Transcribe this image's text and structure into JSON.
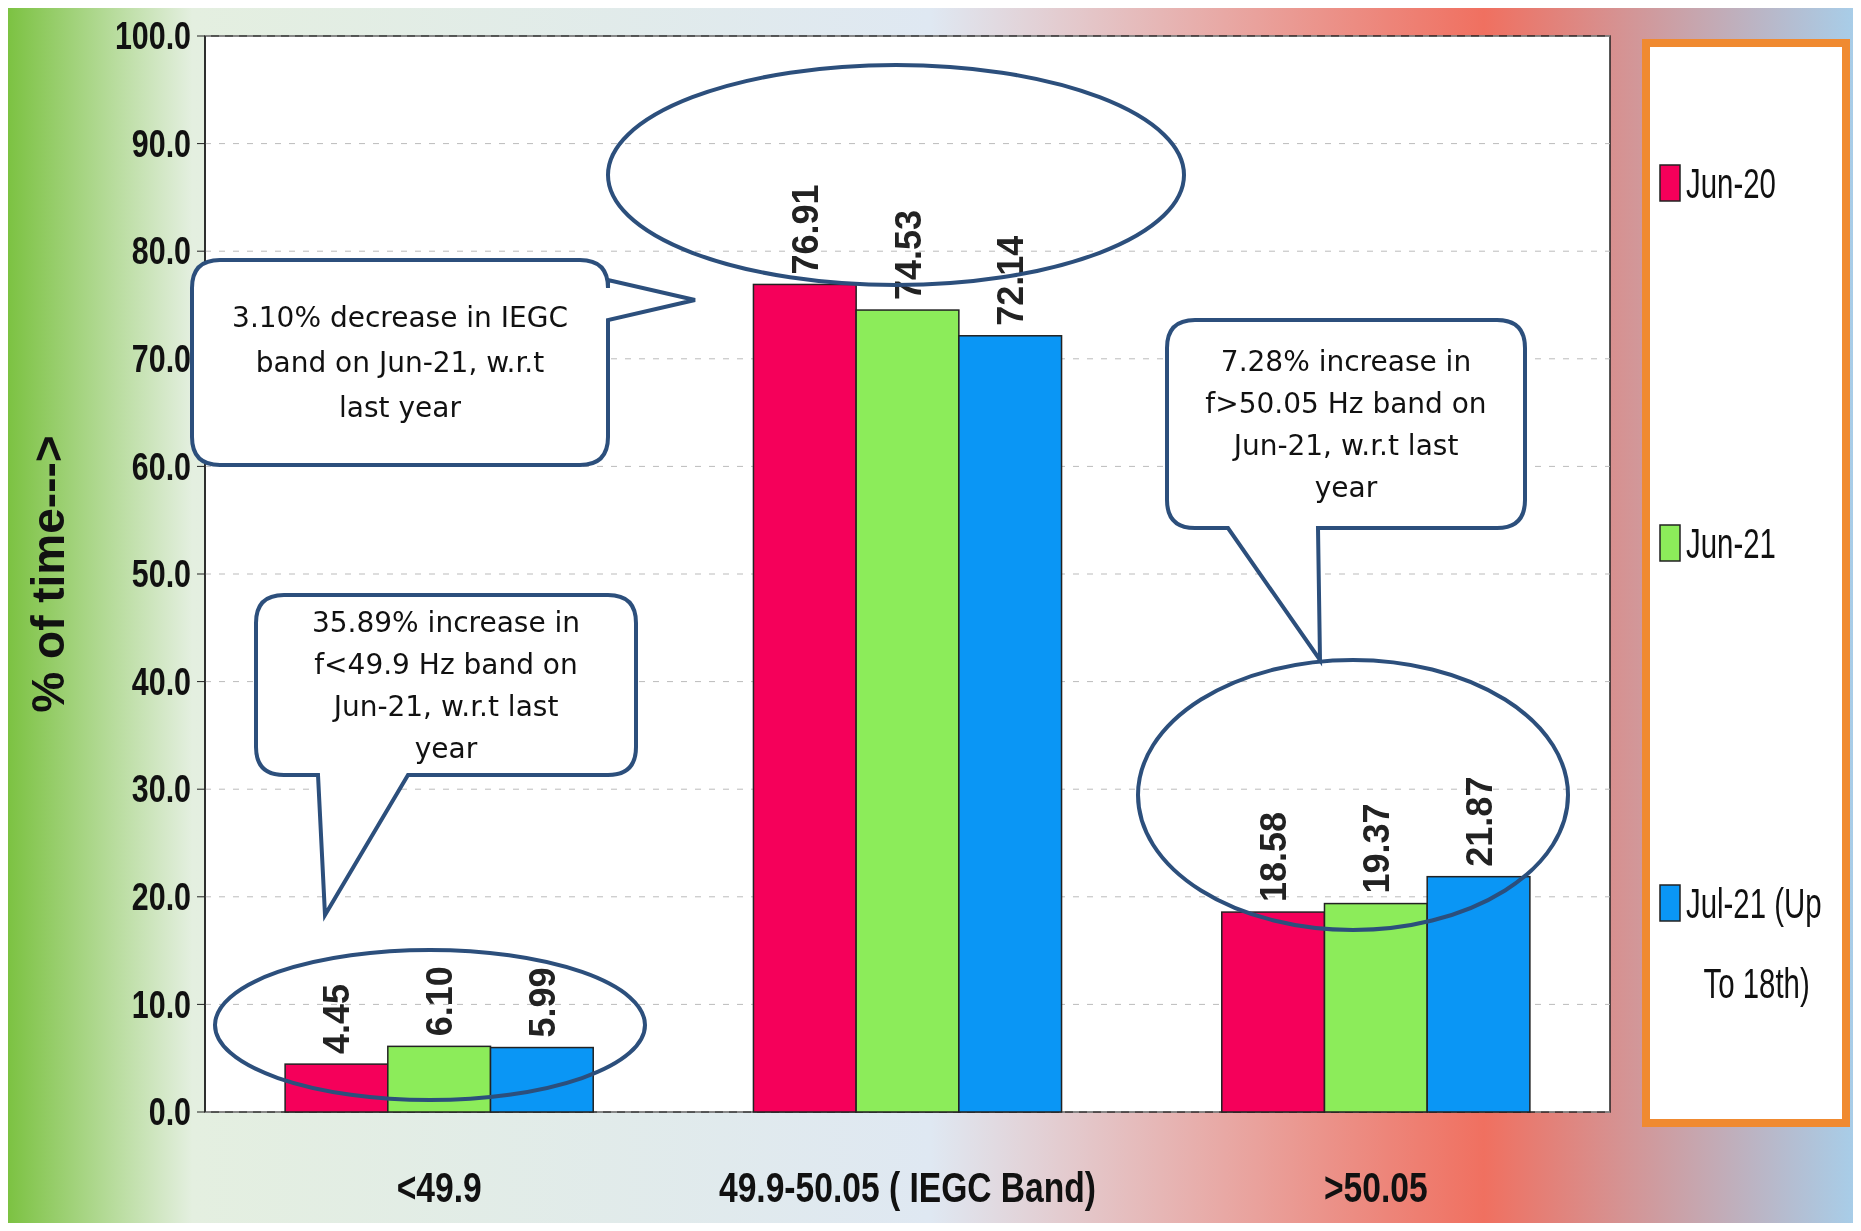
{
  "chart_data": {
    "type": "bar",
    "ylabel": "% of time--->",
    "categories": [
      "<49.9",
      "49.9-50.05 ( IEGC Band)",
      ">50.05"
    ],
    "series": [
      {
        "name": "Jun-20",
        "color": "#f5005a",
        "values": [
          4.45,
          76.91,
          18.58
        ],
        "value_labels": [
          "4.45",
          "76.91",
          "18.58"
        ]
      },
      {
        "name": "Jun-21",
        "color": "#8cec5a",
        "values": [
          6.1,
          74.53,
          19.37
        ],
        "value_labels": [
          "6.10",
          "74.53",
          "19.37"
        ]
      },
      {
        "name": "Jul-21 (Up To 18th)",
        "color": "#0a96f5",
        "values": [
          5.99,
          72.14,
          21.87
        ],
        "value_labels": [
          "5.99",
          "72.14",
          "21.87"
        ]
      }
    ],
    "ylim": [
      0,
      100
    ],
    "yticks": [
      {
        "value": 0,
        "label": "0.0"
      },
      {
        "value": 10,
        "label": "10.0"
      },
      {
        "value": 20,
        "label": "20.0"
      },
      {
        "value": 30,
        "label": "30.0"
      },
      {
        "value": 40,
        "label": "40.0"
      },
      {
        "value": 50,
        "label": "50.0"
      },
      {
        "value": 60,
        "label": "60.0"
      },
      {
        "value": 70,
        "label": "70.0"
      },
      {
        "value": 80,
        "label": "80.0"
      },
      {
        "value": 90,
        "label": "90.0"
      },
      {
        "value": 100,
        "label": "100.0"
      }
    ],
    "grid": "y",
    "legend": "right",
    "annotations": [
      "3.10% decrease in IEGC band on Jun-21, w.r.t last year",
      "35.89% increase in f<49.9 Hz band on Jun-21, w.r.t last year",
      "7.28% increase in f>50.05 Hz band on Jun-21, w.r.t last year"
    ]
  }
}
